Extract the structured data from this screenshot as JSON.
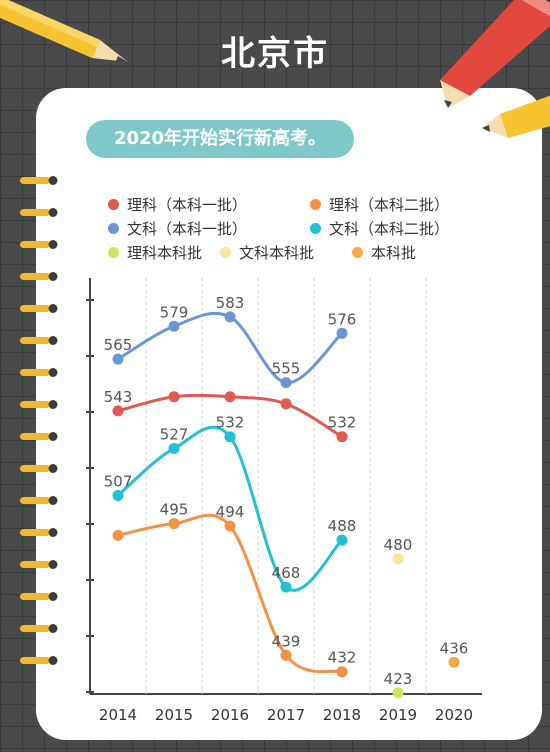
{
  "page": {
    "title": "北京市",
    "banner": "2020年开始实行新高考。"
  },
  "colors": {
    "background": "#4a4a4a",
    "card": "#ffffff",
    "banner": "#7ec8c8"
  },
  "chart_data": {
    "type": "line",
    "categories": [
      "2014",
      "2015",
      "2016",
      "2017",
      "2018",
      "2019",
      "2020"
    ],
    "ylim": [
      300,
      620
    ],
    "grid": "vertical dashed",
    "legend_position": "top",
    "series": [
      {
        "name": "理科（本科一批）",
        "color": "#e05a52",
        "values": [
          543,
          null,
          null,
          null,
          532,
          null,
          null
        ],
        "full_values": [
          543,
          549,
          549,
          546,
          532,
          null,
          null
        ]
      },
      {
        "name": "理科（本科二批）",
        "color": "#f39145",
        "values": [
          null,
          495,
          494,
          439,
          432,
          null,
          null
        ],
        "full_values": [
          490,
          495,
          494,
          439,
          432,
          null,
          null
        ]
      },
      {
        "name": "文科（本科一批）",
        "color": "#6b96d6",
        "values": [
          565,
          579,
          583,
          555,
          576,
          null,
          null
        ]
      },
      {
        "name": "文科（本科二批）",
        "color": "#22c0d4",
        "values": [
          507,
          527,
          532,
          468,
          488,
          null,
          null
        ]
      },
      {
        "name": "理科本科批",
        "color": "#cde55a",
        "values": [
          null,
          null,
          null,
          null,
          null,
          423,
          null
        ]
      },
      {
        "name": "文科本科批",
        "color": "#fbe49a",
        "values": [
          null,
          null,
          null,
          null,
          null,
          480,
          null
        ]
      },
      {
        "name": "本科批",
        "color": "#f5a947",
        "values": [
          null,
          null,
          null,
          null,
          null,
          null,
          436
        ]
      }
    ]
  }
}
